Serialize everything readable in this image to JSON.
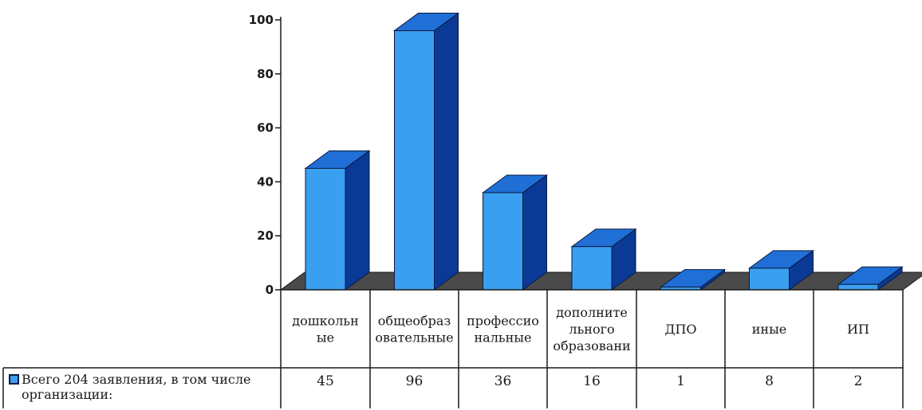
{
  "chart_data": {
    "type": "bar",
    "title": "",
    "xlabel": "",
    "ylabel": "",
    "ylim": [
      0,
      100
    ],
    "yticks": [
      0,
      20,
      40,
      60,
      80,
      100
    ],
    "grid": false,
    "legend_position": "table-left",
    "categories": [
      [
        "дошкольн",
        "ые"
      ],
      [
        "общеобраз",
        "овательные"
      ],
      [
        "профессио",
        "нальные"
      ],
      [
        "дополните",
        "льного",
        "образовани"
      ],
      [
        "ДПО"
      ],
      [
        "иные"
      ],
      [
        "ИП"
      ]
    ],
    "series": [
      {
        "name": [
          "Всего 204 заявления, в том числе",
          "организации:"
        ],
        "values": [
          45,
          96,
          36,
          16,
          1,
          8,
          2
        ],
        "color_front": "#3a9ff0",
        "color_side": "#0a3a95",
        "color_top": "#1f6fd6"
      }
    ],
    "floor_color": "#4a4a4a"
  }
}
